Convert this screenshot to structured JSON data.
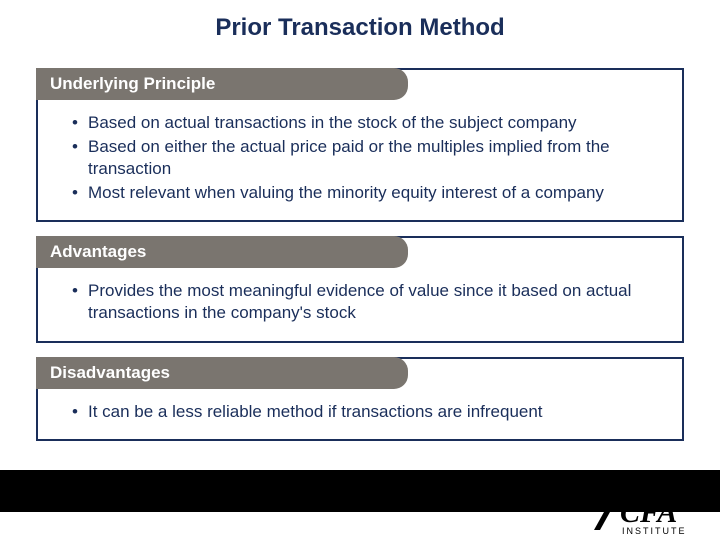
{
  "title": {
    "text": "Prior Transaction Method",
    "fontsize": 24,
    "color": "#1a2e5a"
  },
  "layout": {
    "slide_width": 720,
    "slide_height": 540,
    "border_color": "#1a2e5a",
    "tab_bg": "#7a756f",
    "tab_text_color": "#ffffff",
    "body_text_color": "#1a2e5a",
    "body_fontsize": 17,
    "tab_fontsize": 17,
    "footer_bar_color": "#000000"
  },
  "sections": [
    {
      "label": "Underlying Principle",
      "items": [
        "Based on actual transactions in the stock of the subject company",
        "Based on either the actual price paid or the multiples implied from the transaction",
        "Most relevant when valuing the minority equity interest of a company"
      ]
    },
    {
      "label": "Advantages",
      "items": [
        "Provides the most meaningful evidence of value since it based on actual transactions in the company's stock"
      ]
    },
    {
      "label": "Disadvantages",
      "items": [
        "It can be a less reliable method if transactions are infrequent"
      ]
    }
  ],
  "logo": {
    "org": "CFA",
    "subtext": "INSTITUTE",
    "color": "#000000",
    "triangle_color": "#000000"
  }
}
